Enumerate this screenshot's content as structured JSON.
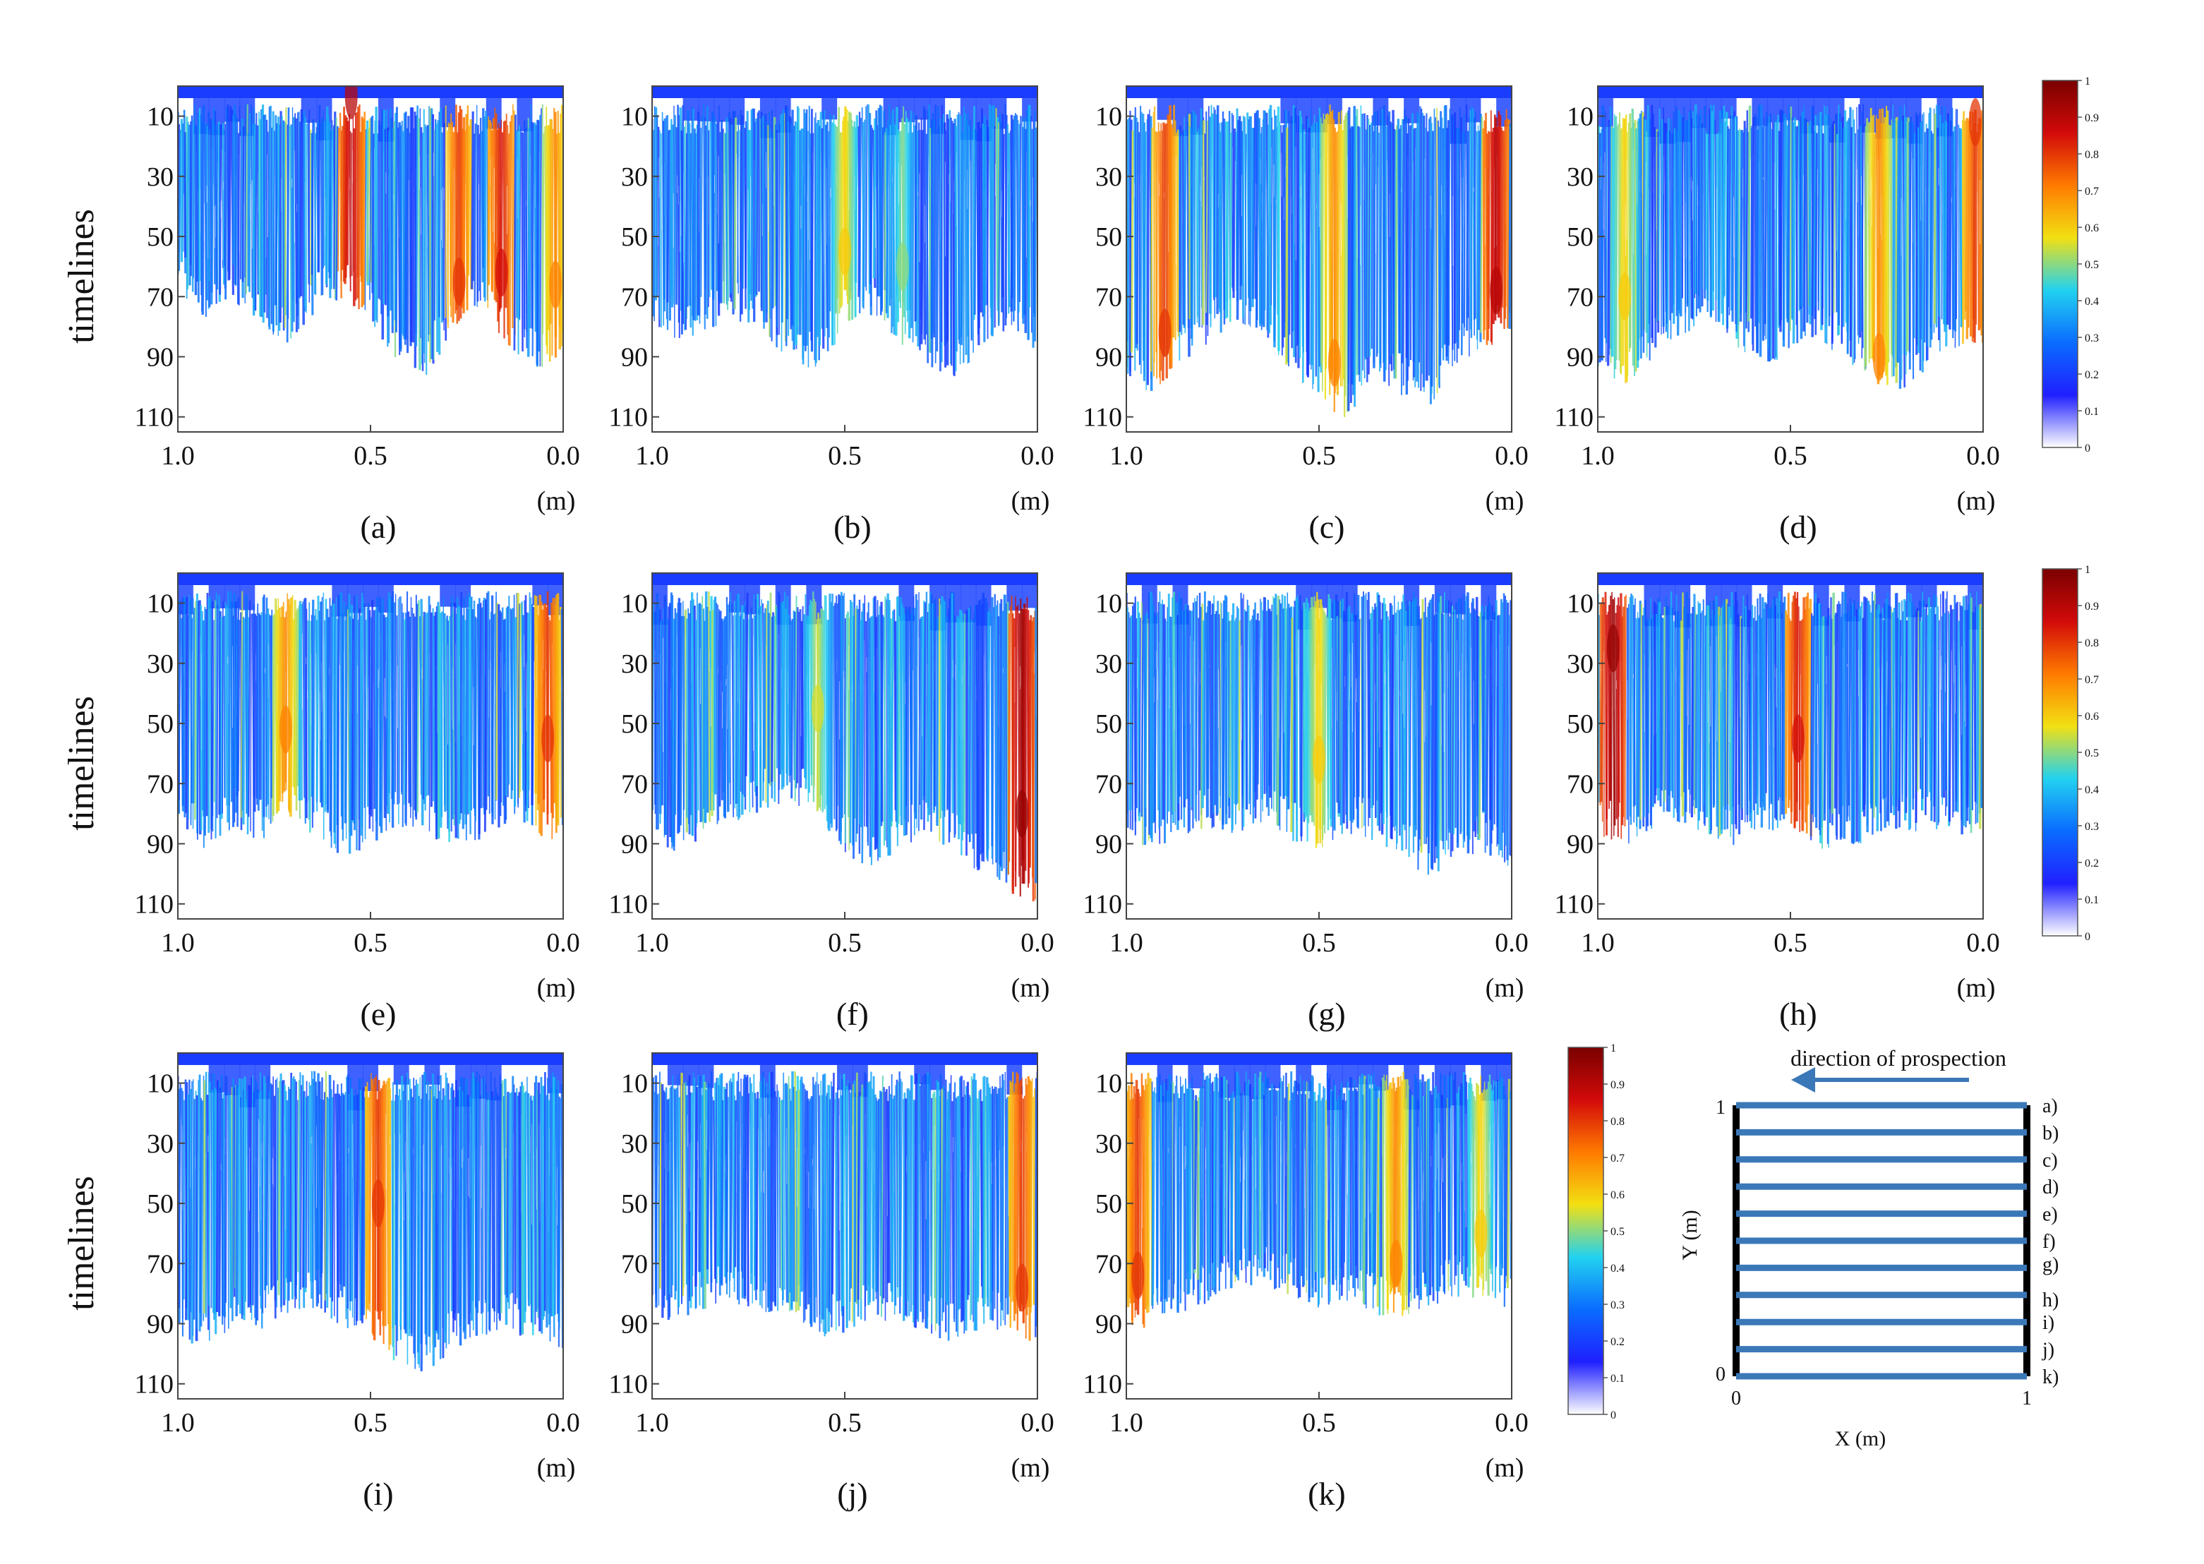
{
  "chart_data": {
    "type": "heatmap",
    "y_label": "timelines",
    "x_unit": "(m)",
    "x_ticks": [
      "1.0",
      "0.5",
      "0.0"
    ],
    "y_ticks": [
      "10",
      "30",
      "50",
      "70",
      "90",
      "110"
    ],
    "x_range": [
      1.0,
      0.0
    ],
    "y_range": [
      0,
      115
    ],
    "colorbar_ticks": [
      "0",
      "0.1",
      "0.2",
      "0.3",
      "0.4",
      "0.5",
      "0.6",
      "0.7",
      "0.8",
      "0.9",
      "1"
    ],
    "colormap": [
      "#ffffff",
      "#2020ff",
      "#0a6cff",
      "#22d2f0",
      "#f2e012",
      "#ff7a00",
      "#d20a0a",
      "#7a0000"
    ],
    "panels": [
      {
        "id": "a",
        "label": "(a)",
        "depth_profile": [
          60,
          70,
          65,
          72,
          80,
          68,
          64,
          72,
          85,
          90,
          75,
          66,
          80,
          88,
          82
        ],
        "hotspots": [
          [
            0.55,
            3,
            0.9
          ],
          [
            0.27,
            65,
            0.8
          ],
          [
            0.16,
            62,
            0.85
          ],
          [
            0.02,
            66,
            0.7
          ]
        ]
      },
      {
        "id": "b",
        "label": "(b)",
        "depth_profile": [
          72,
          78,
          74,
          70,
          76,
          84,
          88,
          74,
          70,
          78,
          86,
          92,
          80,
          74,
          82
        ],
        "hotspots": [
          [
            0.5,
            55,
            0.6
          ],
          [
            0.35,
            60,
            0.5
          ]
        ]
      },
      {
        "id": "c",
        "label": "(c)",
        "depth_profile": [
          90,
          96,
          85,
          78,
          72,
          76,
          88,
          98,
          104,
          92,
          96,
          100,
          86,
          80,
          78
        ],
        "hotspots": [
          [
            0.9,
            82,
            0.8
          ],
          [
            0.46,
            92,
            0.7
          ],
          [
            0.04,
            68,
            0.9
          ]
        ]
      },
      {
        "id": "d",
        "label": "(d)",
        "depth_profile": [
          88,
          92,
          84,
          76,
          72,
          80,
          86,
          82,
          78,
          84,
          92,
          96,
          86,
          80,
          82
        ],
        "hotspots": [
          [
            0.93,
            70,
            0.6
          ],
          [
            0.27,
            90,
            0.7
          ],
          [
            0.02,
            12,
            0.8
          ]
        ]
      },
      {
        "id": "e",
        "label": "(e)",
        "depth_profile": [
          80,
          85,
          78,
          82,
          76,
          80,
          88,
          84,
          78,
          80,
          86,
          82,
          76,
          80,
          84
        ],
        "hotspots": [
          [
            0.72,
            52,
            0.7
          ],
          [
            0.04,
            55,
            0.8
          ]
        ]
      },
      {
        "id": "f",
        "label": "(f)",
        "depth_profile": [
          82,
          86,
          80,
          76,
          72,
          70,
          74,
          86,
          92,
          84,
          80,
          86,
          94,
          100,
          104
        ],
        "hotspots": [
          [
            0.04,
            80,
            0.95
          ],
          [
            0.57,
            45,
            0.55
          ]
        ]
      },
      {
        "id": "g",
        "label": "(g)",
        "depth_profile": [
          82,
          86,
          80,
          78,
          80,
          76,
          82,
          86,
          80,
          82,
          88,
          94,
          90,
          86,
          96
        ],
        "hotspots": [
          [
            0.5,
            62,
            0.6
          ]
        ]
      },
      {
        "id": "h",
        "label": "(h)",
        "depth_profile": [
          80,
          84,
          78,
          76,
          80,
          84,
          78,
          80,
          86,
          84,
          82,
          80,
          78,
          80,
          82
        ],
        "hotspots": [
          [
            0.96,
            25,
            0.95
          ],
          [
            0.48,
            55,
            0.85
          ]
        ]
      },
      {
        "id": "i",
        "label": "(i)",
        "depth_profile": [
          88,
          92,
          84,
          86,
          80,
          78,
          84,
          90,
          96,
          100,
          92,
          88,
          86,
          90,
          92
        ],
        "hotspots": [
          [
            0.48,
            50,
            0.8
          ]
        ]
      },
      {
        "id": "j",
        "label": "(j)",
        "depth_profile": [
          80,
          84,
          78,
          76,
          80,
          82,
          88,
          86,
          82,
          84,
          86,
          90,
          84,
          86,
          90
        ],
        "hotspots": [
          [
            0.04,
            78,
            0.8
          ]
        ]
      },
      {
        "id": "k",
        "label": "(k)",
        "depth_profile": [
          88,
          84,
          80,
          76,
          72,
          70,
          74,
          78,
          76,
          80,
          82,
          78,
          74,
          76,
          78
        ],
        "hotspots": [
          [
            0.97,
            74,
            0.8
          ],
          [
            0.3,
            70,
            0.7
          ],
          [
            0.08,
            60,
            0.6
          ]
        ]
      }
    ],
    "schematic": {
      "title": "direction of prospection",
      "x_label": "X (m)",
      "y_label": "Y (m)",
      "x_ticks": [
        "0",
        "1"
      ],
      "y_ticks": [
        "0",
        "1"
      ],
      "line_labels": [
        "a)",
        "b)",
        "c)",
        "d)",
        "e)",
        "f)",
        "g)",
        "h)",
        "i)",
        "j)",
        "k)"
      ],
      "line_color": "#3b78b8"
    }
  }
}
